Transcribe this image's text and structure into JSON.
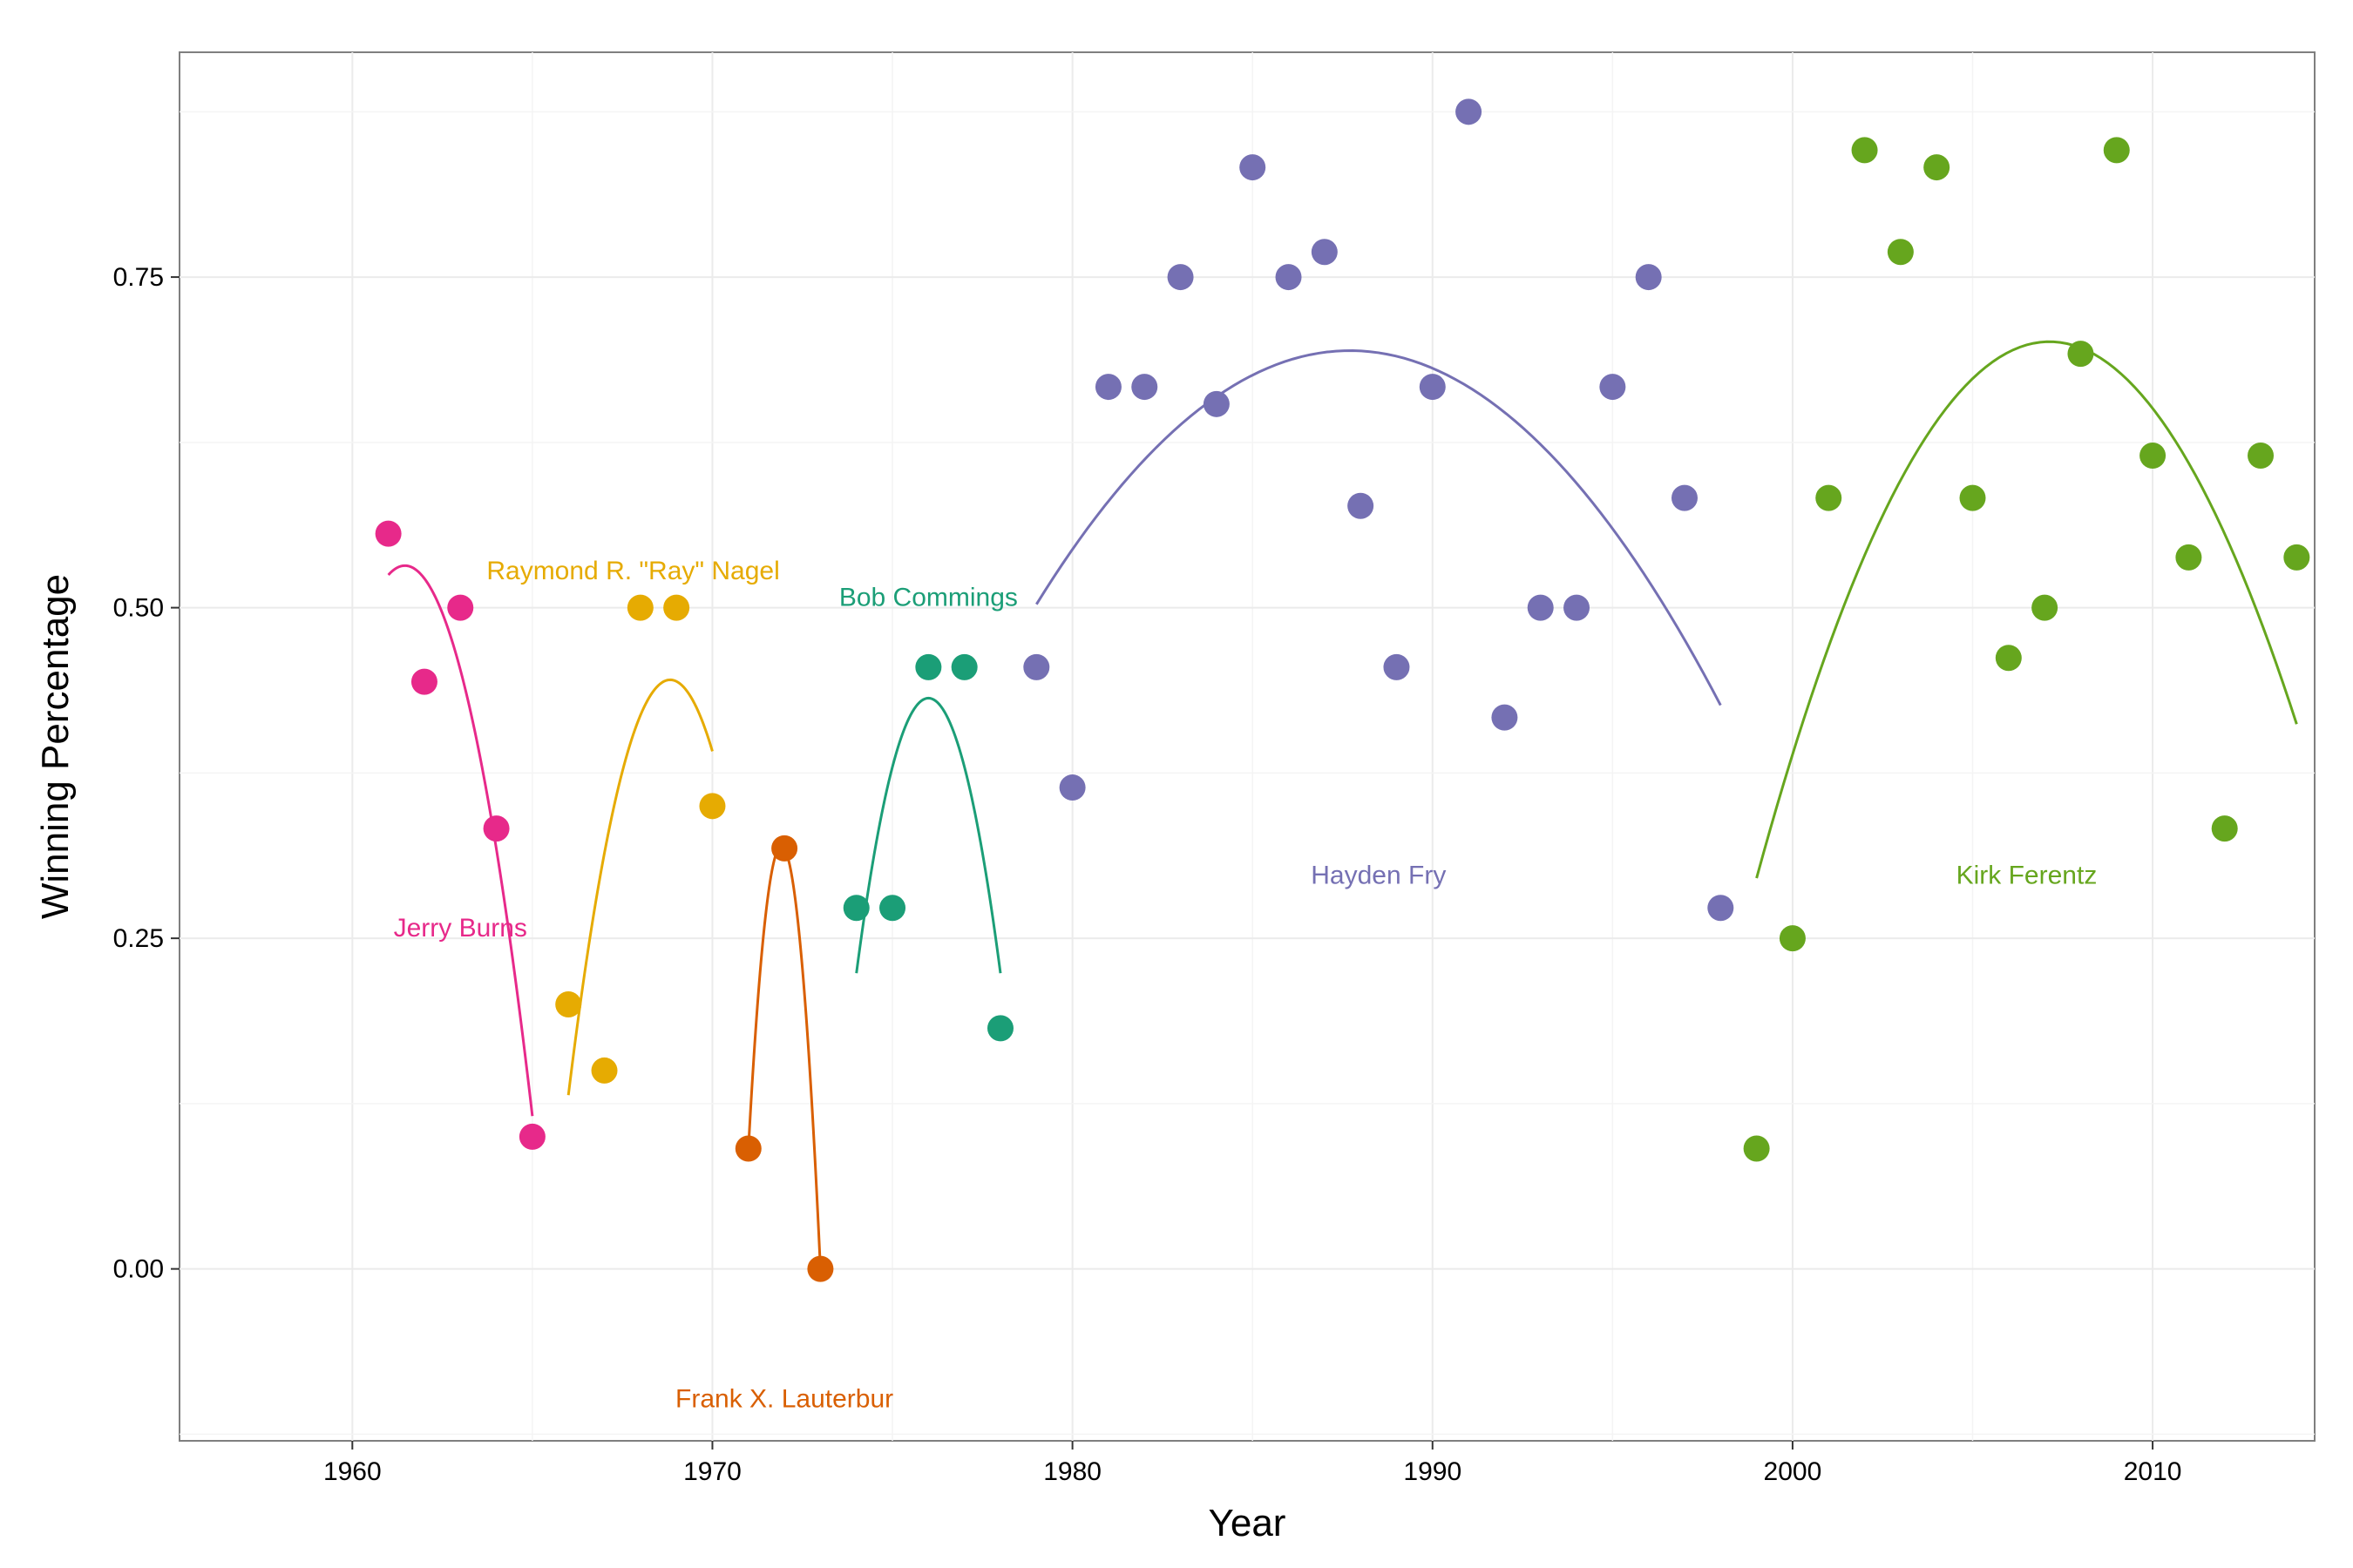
{
  "chart_data": {
    "type": "scatter",
    "title": "",
    "xlabel": "Year",
    "ylabel": "Winning Percentage",
    "xlim": [
      1955.2,
      2014.5
    ],
    "ylim": [
      -0.13,
      0.92
    ],
    "x_ticks": [
      1960,
      1970,
      1980,
      1990,
      2000,
      2010
    ],
    "y_ticks": [
      0.0,
      0.25,
      0.5,
      0.75
    ],
    "y_tick_labels": [
      "0.00",
      "0.25",
      "0.50",
      "0.75"
    ],
    "grid": true,
    "legend": "none",
    "series": [
      {
        "name": "Jerry Burns",
        "color": "#e7298a",
        "label_pos": [
          1963,
          0.258
        ],
        "x": [
          1961,
          1962,
          1963,
          1964,
          1965
        ],
        "y": [
          0.556,
          0.444,
          0.5,
          0.333,
          0.1
        ],
        "fit_x": [
          1961,
          1965
        ]
      },
      {
        "name": "Raymond R. \"Ray\" Nagel",
        "color": "#e6ab02",
        "label_pos": [
          1967.8,
          0.528
        ],
        "x": [
          1966,
          1967,
          1968,
          1969,
          1970
        ],
        "y": [
          0.2,
          0.15,
          0.5,
          0.5,
          0.35
        ],
        "fit_x": [
          1966,
          1970
        ]
      },
      {
        "name": "Frank X. Lauterbur",
        "color": "#d95f02",
        "label_pos": [
          1972,
          -0.098
        ],
        "x": [
          1971,
          1972,
          1973
        ],
        "y": [
          0.091,
          0.318,
          0.0
        ],
        "fit_x": [
          1971,
          1973
        ]
      },
      {
        "name": "Bob Commings",
        "color": "#1b9e77",
        "label_pos": [
          1976,
          0.508
        ],
        "x": [
          1974,
          1975,
          1976,
          1977,
          1978
        ],
        "y": [
          0.273,
          0.273,
          0.455,
          0.455,
          0.182
        ],
        "fit_x": [
          1974,
          1978
        ]
      },
      {
        "name": "Hayden Fry",
        "color": "#7570b3",
        "label_pos": [
          1988.5,
          0.298
        ],
        "x": [
          1979,
          1980,
          1981,
          1982,
          1983,
          1984,
          1985,
          1986,
          1987,
          1988,
          1989,
          1990,
          1991,
          1992,
          1993,
          1994,
          1995,
          1996,
          1997,
          1998
        ],
        "y": [
          0.455,
          0.364,
          0.667,
          0.667,
          0.75,
          0.654,
          0.833,
          0.75,
          0.769,
          0.577,
          0.455,
          0.667,
          0.875,
          0.417,
          0.5,
          0.5,
          0.667,
          0.75,
          0.583,
          0.273
        ],
        "fit_x": [
          1979,
          1998
        ]
      },
      {
        "name": "Kirk Ferentz",
        "color": "#66a61e",
        "label_pos": [
          2006.5,
          0.298
        ],
        "x": [
          1999,
          2000,
          2001,
          2002,
          2003,
          2004,
          2005,
          2006,
          2007,
          2008,
          2009,
          2010,
          2011,
          2012,
          2013,
          2014
        ],
        "y": [
          0.091,
          0.25,
          0.583,
          0.846,
          0.769,
          0.833,
          0.583,
          0.462,
          0.5,
          0.692,
          0.846,
          0.615,
          0.538,
          0.333,
          0.615,
          0.538
        ],
        "fit_x": [
          1999,
          2014
        ]
      }
    ]
  }
}
